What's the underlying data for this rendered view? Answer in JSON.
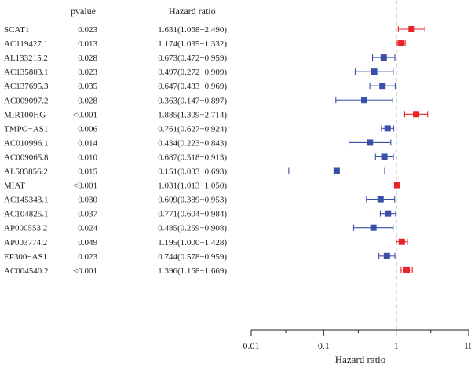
{
  "chart_data": {
    "type": "forest",
    "header": {
      "pvalue": "pvalue",
      "hazard_ratio": "Hazard ratio"
    },
    "xlabel": "Hazard ratio",
    "xscale": "log",
    "xlim": [
      0.01,
      10
    ],
    "xticks": [
      "0.01",
      "0.1",
      "1",
      "10"
    ],
    "reference_line": 1,
    "colors": {
      "risk": "#e8242b",
      "protective": "#3a4fa8",
      "ci_risk": "#e8242b",
      "ci_protective": "#3a4fa8"
    },
    "rows": [
      {
        "gene": "SCAT1",
        "pvalue": "0.023",
        "hr_text": "1.631(1.068−2.490)",
        "hr": 1.631,
        "lo": 1.068,
        "hi": 2.49
      },
      {
        "gene": "AC119427.1",
        "pvalue": "0.013",
        "hr_text": "1.174(1.035−1.332)",
        "hr": 1.174,
        "lo": 1.035,
        "hi": 1.332
      },
      {
        "gene": "AL133215.2",
        "pvalue": "0.028",
        "hr_text": "0.673(0.472−0.959)",
        "hr": 0.673,
        "lo": 0.472,
        "hi": 0.959
      },
      {
        "gene": "AC135803.1",
        "pvalue": "0.023",
        "hr_text": "0.497(0.272−0.909)",
        "hr": 0.497,
        "lo": 0.272,
        "hi": 0.909
      },
      {
        "gene": "AC137695.3",
        "pvalue": "0.035",
        "hr_text": "0.647(0.433−0.969)",
        "hr": 0.647,
        "lo": 0.433,
        "hi": 0.969
      },
      {
        "gene": "AC009097.2",
        "pvalue": "0.028",
        "hr_text": "0.363(0.147−0.897)",
        "hr": 0.363,
        "lo": 0.147,
        "hi": 0.897
      },
      {
        "gene": "MIR100HG",
        "pvalue": "<0.001",
        "hr_text": "1.885(1.309−2.714)",
        "hr": 1.885,
        "lo": 1.309,
        "hi": 2.714
      },
      {
        "gene": "TMPO−AS1",
        "pvalue": "0.006",
        "hr_text": "0.761(0.627−0.924)",
        "hr": 0.761,
        "lo": 0.627,
        "hi": 0.924
      },
      {
        "gene": "AC010996.1",
        "pvalue": "0.014",
        "hr_text": "0.434(0.223−0.843)",
        "hr": 0.434,
        "lo": 0.223,
        "hi": 0.843
      },
      {
        "gene": "AC009065.8",
        "pvalue": "0.010",
        "hr_text": "0.687(0.518−0.913)",
        "hr": 0.687,
        "lo": 0.518,
        "hi": 0.913
      },
      {
        "gene": "AL583856.2",
        "pvalue": "0.015",
        "hr_text": "0.151(0.033−0.693)",
        "hr": 0.151,
        "lo": 0.033,
        "hi": 0.693
      },
      {
        "gene": "MIAT",
        "pvalue": "<0.001",
        "hr_text": "1.031(1.013−1.050)",
        "hr": 1.031,
        "lo": 1.013,
        "hi": 1.05
      },
      {
        "gene": "AC145343.1",
        "pvalue": "0.030",
        "hr_text": "0.609(0.389−0.953)",
        "hr": 0.609,
        "lo": 0.389,
        "hi": 0.953
      },
      {
        "gene": "AC104825.1",
        "pvalue": "0.037",
        "hr_text": "0.771(0.604−0.984)",
        "hr": 0.771,
        "lo": 0.604,
        "hi": 0.984
      },
      {
        "gene": "AP000553.2",
        "pvalue": "0.024",
        "hr_text": "0.485(0.259−0.908)",
        "hr": 0.485,
        "lo": 0.259,
        "hi": 0.908
      },
      {
        "gene": "AP003774.2",
        "pvalue": "0.049",
        "hr_text": "1.195(1.000−1.428)",
        "hr": 1.195,
        "lo": 1.0,
        "hi": 1.428
      },
      {
        "gene": "EP300−AS1",
        "pvalue": "0.023",
        "hr_text": "0.744(0.578−0.959)",
        "hr": 0.744,
        "lo": 0.578,
        "hi": 0.959
      },
      {
        "gene": "AC004540.2",
        "pvalue": "<0.001",
        "hr_text": "1.396(1.168−1.669)",
        "hr": 1.396,
        "lo": 1.168,
        "hi": 1.669
      }
    ]
  }
}
